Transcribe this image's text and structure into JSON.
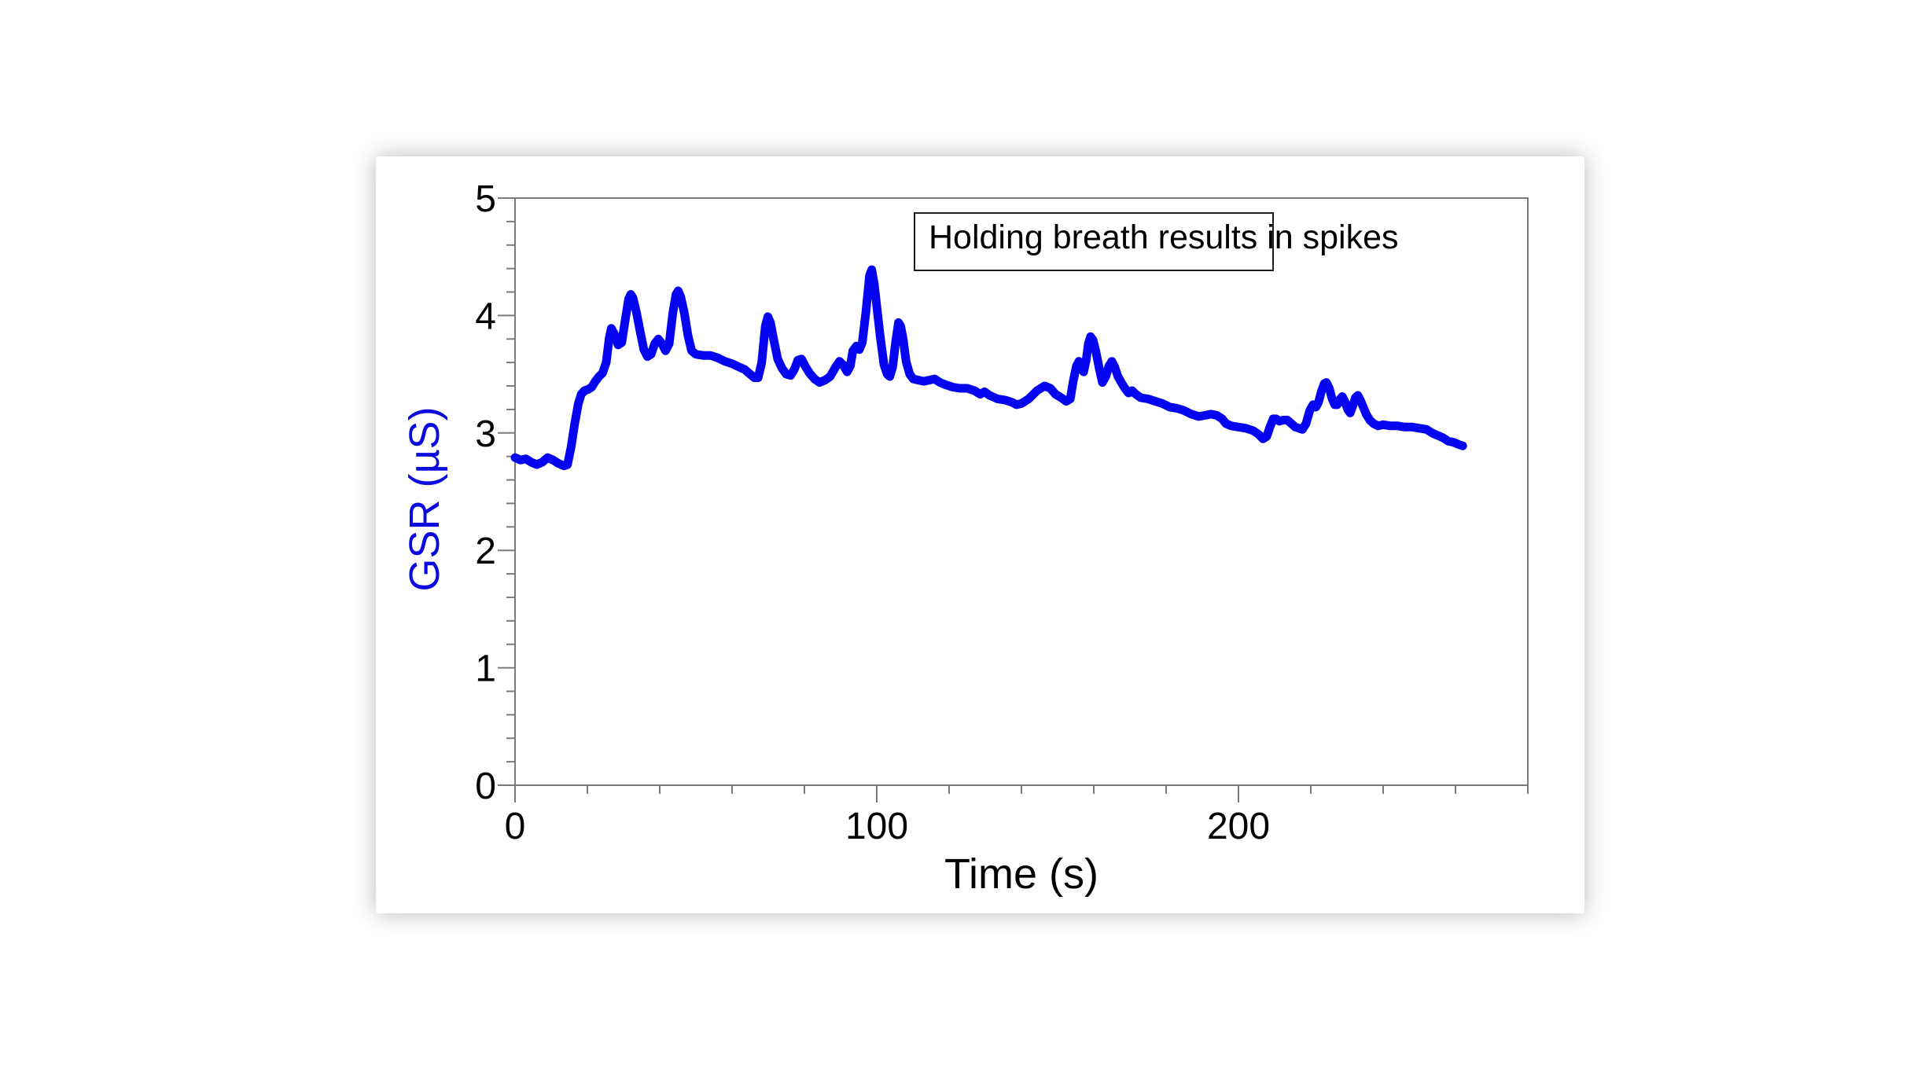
{
  "page": {
    "background_color": "#ffffff",
    "panel_background": "#ffffff"
  },
  "chart_data": {
    "type": "line",
    "title": "",
    "xlabel": "Time (s)",
    "ylabel": "GSR (µS)",
    "xlim": [
      0,
      280
    ],
    "ylim": [
      0,
      5
    ],
    "x_major_ticks": [
      0,
      100,
      200
    ],
    "x_minor_tick_step": 20,
    "y_major_ticks": [
      0,
      1,
      2,
      3,
      4,
      5
    ],
    "y_minor_tick_step": 0.2,
    "grid": false,
    "legend_position": "none",
    "annotation": {
      "text": "Holding breath results in spikes"
    },
    "colors": {
      "line": "#0404f0",
      "axis": "#7b7b7b",
      "tick_labels": "#000000",
      "xlabel": "#000000",
      "ylabel": "#0b0bdd",
      "annotation_border": "#1f1f1f"
    },
    "series": [
      {
        "name": "GSR",
        "points": [
          [
            0,
            2.79
          ],
          [
            1.5,
            2.77
          ],
          [
            3,
            2.78
          ],
          [
            4.5,
            2.75
          ],
          [
            6,
            2.73
          ],
          [
            7.5,
            2.75
          ],
          [
            9,
            2.79
          ],
          [
            10.5,
            2.77
          ],
          [
            12,
            2.74
          ],
          [
            13.5,
            2.72
          ],
          [
            14.5,
            2.73
          ],
          [
            15.5,
            2.88
          ],
          [
            16.5,
            3.08
          ],
          [
            17.5,
            3.25
          ],
          [
            18.3,
            3.33
          ],
          [
            19.2,
            3.36
          ],
          [
            20.2,
            3.37
          ],
          [
            21.2,
            3.39
          ],
          [
            22.2,
            3.44
          ],
          [
            23.2,
            3.48
          ],
          [
            24.2,
            3.51
          ],
          [
            25.2,
            3.6
          ],
          [
            26,
            3.8
          ],
          [
            26.6,
            3.89
          ],
          [
            27.5,
            3.84
          ],
          [
            28.5,
            3.75
          ],
          [
            29.5,
            3.77
          ],
          [
            30.5,
            3.97
          ],
          [
            31.4,
            4.14
          ],
          [
            32,
            4.18
          ],
          [
            32.6,
            4.15
          ],
          [
            33.6,
            4.02
          ],
          [
            34.6,
            3.86
          ],
          [
            35.6,
            3.71
          ],
          [
            36.6,
            3.65
          ],
          [
            37.6,
            3.67
          ],
          [
            38.6,
            3.76
          ],
          [
            39.6,
            3.8
          ],
          [
            40.6,
            3.76
          ],
          [
            41.6,
            3.7
          ],
          [
            42.6,
            3.76
          ],
          [
            43.6,
            4.02
          ],
          [
            44.5,
            4.18
          ],
          [
            45.1,
            4.21
          ],
          [
            45.8,
            4.16
          ],
          [
            46.8,
            4.02
          ],
          [
            47.8,
            3.83
          ],
          [
            48.8,
            3.7
          ],
          [
            50,
            3.67
          ],
          [
            52,
            3.66
          ],
          [
            54,
            3.66
          ],
          [
            56,
            3.64
          ],
          [
            58,
            3.61
          ],
          [
            60,
            3.59
          ],
          [
            62,
            3.56
          ],
          [
            63.5,
            3.54
          ],
          [
            65,
            3.5
          ],
          [
            66.2,
            3.47
          ],
          [
            67.2,
            3.47
          ],
          [
            68.2,
            3.6
          ],
          [
            69.2,
            3.91
          ],
          [
            69.9,
            3.99
          ],
          [
            70.6,
            3.94
          ],
          [
            71.6,
            3.78
          ],
          [
            72.6,
            3.63
          ],
          [
            73.8,
            3.55
          ],
          [
            75,
            3.5
          ],
          [
            76.2,
            3.49
          ],
          [
            77.2,
            3.54
          ],
          [
            78.2,
            3.62
          ],
          [
            79.2,
            3.63
          ],
          [
            80.2,
            3.57
          ],
          [
            81.4,
            3.51
          ],
          [
            82.8,
            3.46
          ],
          [
            84.2,
            3.43
          ],
          [
            85.7,
            3.45
          ],
          [
            87.1,
            3.48
          ],
          [
            88.6,
            3.56
          ],
          [
            89.7,
            3.61
          ],
          [
            90.7,
            3.58
          ],
          [
            91.8,
            3.52
          ],
          [
            92.7,
            3.57
          ],
          [
            93.4,
            3.7
          ],
          [
            94.4,
            3.74
          ],
          [
            95.2,
            3.71
          ],
          [
            96,
            3.77
          ],
          [
            97,
            4.03
          ],
          [
            98,
            4.34
          ],
          [
            98.6,
            4.39
          ],
          [
            99.3,
            4.27
          ],
          [
            100.1,
            4.05
          ],
          [
            101,
            3.81
          ],
          [
            102,
            3.58
          ],
          [
            102.9,
            3.5
          ],
          [
            103.6,
            3.48
          ],
          [
            104.4,
            3.56
          ],
          [
            105.2,
            3.77
          ],
          [
            106,
            3.94
          ],
          [
            106.6,
            3.91
          ],
          [
            107.3,
            3.8
          ],
          [
            108.1,
            3.61
          ],
          [
            109.1,
            3.5
          ],
          [
            110.1,
            3.46
          ],
          [
            111.5,
            3.45
          ],
          [
            113,
            3.44
          ],
          [
            114.5,
            3.45
          ],
          [
            116,
            3.46
          ],
          [
            117.5,
            3.43
          ],
          [
            119,
            3.41
          ],
          [
            121,
            3.39
          ],
          [
            123,
            3.38
          ],
          [
            125,
            3.38
          ],
          [
            127,
            3.36
          ],
          [
            128.6,
            3.33
          ],
          [
            129.8,
            3.35
          ],
          [
            131.2,
            3.32
          ],
          [
            133.4,
            3.29
          ],
          [
            135.5,
            3.28
          ],
          [
            137.5,
            3.26
          ],
          [
            138.6,
            3.24
          ],
          [
            140,
            3.25
          ],
          [
            142,
            3.29
          ],
          [
            144.3,
            3.36
          ],
          [
            146.4,
            3.4
          ],
          [
            148,
            3.38
          ],
          [
            149.4,
            3.33
          ],
          [
            151,
            3.3
          ],
          [
            152.4,
            3.27
          ],
          [
            153.5,
            3.29
          ],
          [
            154.3,
            3.44
          ],
          [
            155.2,
            3.57
          ],
          [
            155.9,
            3.61
          ],
          [
            156.6,
            3.55
          ],
          [
            157.2,
            3.52
          ],
          [
            157.9,
            3.62
          ],
          [
            158.5,
            3.76
          ],
          [
            159.1,
            3.82
          ],
          [
            159.8,
            3.79
          ],
          [
            160.6,
            3.69
          ],
          [
            161.5,
            3.55
          ],
          [
            162.4,
            3.43
          ],
          [
            163.3,
            3.48
          ],
          [
            164.2,
            3.57
          ],
          [
            165,
            3.61
          ],
          [
            165.8,
            3.56
          ],
          [
            166.7,
            3.48
          ],
          [
            167.6,
            3.43
          ],
          [
            168.6,
            3.38
          ],
          [
            169.6,
            3.34
          ],
          [
            170.6,
            3.36
          ],
          [
            171.6,
            3.33
          ],
          [
            173,
            3.3
          ],
          [
            175,
            3.29
          ],
          [
            177,
            3.27
          ],
          [
            179,
            3.25
          ],
          [
            181,
            3.22
          ],
          [
            183,
            3.21
          ],
          [
            185,
            3.19
          ],
          [
            187,
            3.16
          ],
          [
            189,
            3.14
          ],
          [
            190.8,
            3.15
          ],
          [
            192.4,
            3.16
          ],
          [
            194,
            3.15
          ],
          [
            195.5,
            3.12
          ],
          [
            196.5,
            3.08
          ],
          [
            198,
            3.06
          ],
          [
            200,
            3.05
          ],
          [
            202,
            3.04
          ],
          [
            204,
            3.02
          ],
          [
            205.5,
            2.99
          ],
          [
            206.8,
            2.95
          ],
          [
            207.8,
            2.97
          ],
          [
            208.7,
            3.05
          ],
          [
            209.6,
            3.12
          ],
          [
            210.4,
            3.12
          ],
          [
            211.3,
            3.1
          ],
          [
            212.4,
            3.11
          ],
          [
            213.5,
            3.11
          ],
          [
            214.6,
            3.08
          ],
          [
            215.7,
            3.05
          ],
          [
            216.7,
            3.04
          ],
          [
            217.7,
            3.03
          ],
          [
            218.7,
            3.08
          ],
          [
            219.7,
            3.19
          ],
          [
            220.6,
            3.24
          ],
          [
            221.4,
            3.22
          ],
          [
            222.1,
            3.26
          ],
          [
            222.9,
            3.35
          ],
          [
            223.7,
            3.42
          ],
          [
            224.3,
            3.43
          ],
          [
            225.1,
            3.38
          ],
          [
            225.9,
            3.29
          ],
          [
            226.6,
            3.24
          ],
          [
            227.3,
            3.24
          ],
          [
            228.1,
            3.29
          ],
          [
            228.7,
            3.31
          ],
          [
            229.4,
            3.27
          ],
          [
            230.2,
            3.2
          ],
          [
            230.9,
            3.17
          ],
          [
            231.6,
            3.23
          ],
          [
            232.3,
            3.3
          ],
          [
            233,
            3.32
          ],
          [
            233.7,
            3.28
          ],
          [
            234.5,
            3.22
          ],
          [
            235.3,
            3.16
          ],
          [
            236.3,
            3.11
          ],
          [
            237.3,
            3.08
          ],
          [
            238.6,
            3.06
          ],
          [
            240,
            3.07
          ],
          [
            242,
            3.06
          ],
          [
            244,
            3.06
          ],
          [
            246,
            3.05
          ],
          [
            248,
            3.05
          ],
          [
            250,
            3.04
          ],
          [
            252,
            3.03
          ],
          [
            253.5,
            3.0
          ],
          [
            255,
            2.98
          ],
          [
            256.5,
            2.96
          ],
          [
            258,
            2.93
          ],
          [
            259.5,
            2.92
          ],
          [
            261,
            2.9
          ],
          [
            262,
            2.89
          ]
        ]
      }
    ]
  }
}
